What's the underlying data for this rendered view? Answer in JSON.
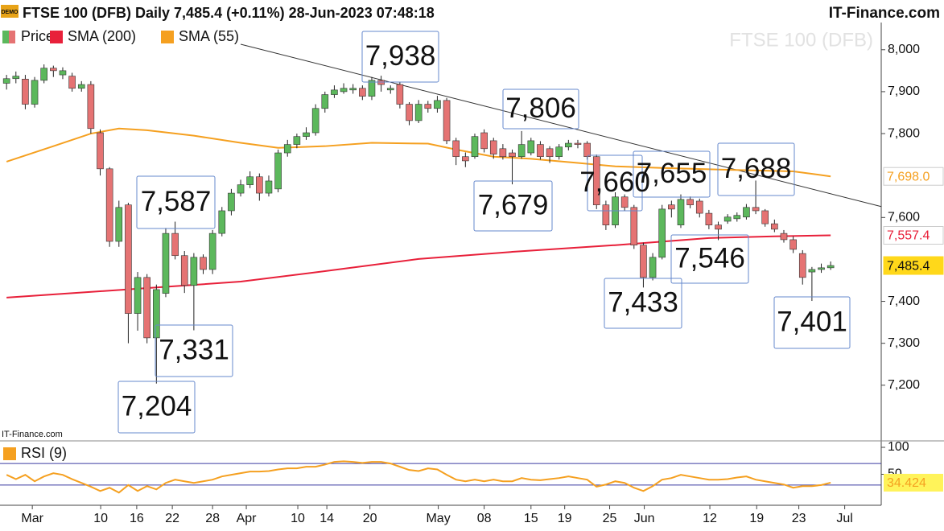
{
  "header": {
    "title": "FTSE 100 (DFB) Daily 7,485.4 (+0.11%) 28-Jun-2023 07:48:18",
    "brand": "IT-Finance.com",
    "watermark": "FTSE 100 (DFB)",
    "footer_brand": "IT-Finance.com",
    "badge": "DEMO"
  },
  "chart_data": [
    {
      "type": "candlestick",
      "name": "Price",
      "up_color": "#5cb85c",
      "down_color": "#e57373",
      "open": [
        7920,
        7931,
        7930,
        7870,
        7927,
        7956,
        7940,
        7937,
        7908,
        7917,
        7802,
        7716,
        7543,
        7630,
        7371,
        7457,
        7313,
        7419,
        7562,
        7509,
        7438,
        7505,
        7476,
        7562,
        7616,
        7658,
        7678,
        7697,
        7658,
        7668,
        7754,
        7774,
        7793,
        7802,
        7860,
        7893,
        7900,
        7904,
        7908,
        7889,
        7927,
        7904,
        7917,
        7870,
        7831,
        7870,
        7860,
        7879,
        7783,
        7745,
        7745,
        7802,
        7783,
        7764,
        7754,
        7745,
        7754,
        7774,
        7764,
        7745,
        7768,
        7777,
        7777,
        7745,
        7630,
        7582,
        7649,
        7624,
        7534,
        7457,
        7505,
        7630,
        7582,
        7643,
        7639,
        7610,
        7582,
        7591,
        7597,
        7601,
        7624,
        7616,
        7585,
        7562,
        7547,
        7514,
        7470,
        7476,
        7480
      ],
      "high": [
        7940,
        7948,
        7940,
        7935,
        7965,
        7962,
        7958,
        7945,
        7925,
        7925,
        7810,
        7720,
        7640,
        7635,
        7470,
        7465,
        7440,
        7575,
        7590,
        7520,
        7515,
        7512,
        7570,
        7625,
        7668,
        7690,
        7710,
        7705,
        7700,
        7762,
        7785,
        7800,
        7815,
        7870,
        7900,
        7915,
        7920,
        7918,
        7915,
        7935,
        7938,
        7915,
        7922,
        7875,
        7880,
        7878,
        7890,
        7885,
        7790,
        7755,
        7800,
        7810,
        7790,
        7775,
        7762,
        7806,
        7790,
        7782,
        7770,
        7775,
        7785,
        7785,
        7782,
        7750,
        7640,
        7660,
        7655,
        7630,
        7540,
        7515,
        7630,
        7640,
        7655,
        7650,
        7645,
        7618,
        7590,
        7608,
        7612,
        7632,
        7688,
        7620,
        7595,
        7570,
        7555,
        7522,
        7482,
        7490,
        7495
      ],
      "low": [
        7905,
        7920,
        7858,
        7862,
        7920,
        7935,
        7930,
        7900,
        7900,
        7800,
        7700,
        7530,
        7530,
        7300,
        7330,
        7300,
        7204,
        7410,
        7500,
        7420,
        7331,
        7465,
        7465,
        7555,
        7605,
        7650,
        7670,
        7640,
        7650,
        7660,
        7745,
        7765,
        7785,
        7795,
        7850,
        7885,
        7895,
        7895,
        7880,
        7880,
        7900,
        7895,
        7860,
        7820,
        7825,
        7850,
        7850,
        7775,
        7725,
        7720,
        7740,
        7755,
        7740,
        7738,
        7679,
        7740,
        7748,
        7738,
        7730,
        7738,
        7760,
        7765,
        7738,
        7620,
        7570,
        7575,
        7615,
        7525,
        7433,
        7450,
        7500,
        7600,
        7575,
        7622,
        7600,
        7572,
        7546,
        7585,
        7590,
        7595,
        7608,
        7578,
        7565,
        7540,
        7515,
        7440,
        7401,
        7468,
        7475
      ],
      "close": [
        7931,
        7937,
        7870,
        7927,
        7956,
        7950,
        7950,
        7908,
        7917,
        7812,
        7716,
        7543,
        7624,
        7371,
        7457,
        7313,
        7428,
        7562,
        7509,
        7438,
        7505,
        7476,
        7562,
        7616,
        7658,
        7678,
        7697,
        7658,
        7687,
        7754,
        7774,
        7793,
        7802,
        7860,
        7893,
        7904,
        7908,
        7908,
        7889,
        7927,
        7917,
        7908,
        7870,
        7831,
        7870,
        7860,
        7879,
        7783,
        7745,
        7735,
        7793,
        7764,
        7751,
        7745,
        7745,
        7774,
        7783,
        7745,
        7745,
        7768,
        7777,
        7774,
        7745,
        7630,
        7582,
        7649,
        7624,
        7534,
        7457,
        7505,
        7620,
        7620,
        7643,
        7630,
        7610,
        7582,
        7572,
        7601,
        7605,
        7624,
        7616,
        7585,
        7572,
        7547,
        7524,
        7457,
        7476,
        7480,
        7485.4
      ],
      "last_label": "7,485.4",
      "overlays": [
        {
          "name": "SMA (200)",
          "color": "#e8203a",
          "x": [
            0,
            10,
            25,
            34,
            44,
            54,
            65,
            75,
            82,
            88
          ],
          "values": [
            7409,
            7424,
            7447,
            7472,
            7501,
            7518,
            7534,
            7551,
            7555,
            7557.4
          ],
          "last_label": "7,557.4"
        },
        {
          "name": "SMA (55)",
          "color": "#f5a020",
          "x": [
            0,
            5,
            9,
            12,
            15,
            20,
            25,
            29,
            34,
            39,
            45,
            48,
            52,
            56,
            61,
            65,
            70,
            75,
            80,
            84,
            88
          ],
          "values": [
            7733,
            7770,
            7800,
            7812,
            7808,
            7795,
            7778,
            7766,
            7770,
            7778,
            7776,
            7762,
            7745,
            7740,
            7730,
            7722,
            7718,
            7715,
            7712,
            7710,
            7698.0
          ],
          "last_label": "7,698.0"
        }
      ],
      "trendline": {
        "color": "#333333",
        "x": [
          25,
          93.4
        ],
        "values": [
          8013,
          7626
        ]
      },
      "annotations": [
        "7,938",
        "7,806",
        "7,679",
        "7,587",
        "7,331",
        "7,204",
        "7,660",
        "7,655",
        "7,688",
        "7,546",
        "7,433",
        "7,401"
      ],
      "ylim": [
        7073,
        8061
      ],
      "yticks": [
        {
          "value": 8000,
          "label": "8,000"
        },
        {
          "value": 7900,
          "label": "7,900"
        },
        {
          "value": 7800,
          "label": "7,800"
        },
        {
          "value": 7600,
          "label": "7,600"
        },
        {
          "value": 7400,
          "label": "7,400"
        },
        {
          "value": 7300,
          "label": "7,300"
        },
        {
          "value": 7200,
          "label": "7,200"
        }
      ],
      "xlim": [
        -0.7,
        93.4
      ],
      "xticks": [
        {
          "value": 2.75,
          "label": "Mar"
        },
        {
          "value": 10.05,
          "label": "10"
        },
        {
          "value": 13.9,
          "label": "16"
        },
        {
          "value": 17.7,
          "label": "22"
        },
        {
          "value": 22,
          "label": "28"
        },
        {
          "value": 25.6,
          "label": "Apr"
        },
        {
          "value": 31.1,
          "label": "10"
        },
        {
          "value": 34.2,
          "label": "14"
        },
        {
          "value": 38.8,
          "label": "20"
        },
        {
          "value": 46.1,
          "label": "May"
        },
        {
          "value": 51,
          "label": "08"
        },
        {
          "value": 56,
          "label": "15"
        },
        {
          "value": 59.6,
          "label": "19"
        },
        {
          "value": 64.4,
          "label": "25"
        },
        {
          "value": 68.1,
          "label": "Jun"
        },
        {
          "value": 75.1,
          "label": "12"
        },
        {
          "value": 80.1,
          "label": "19"
        },
        {
          "value": 84.6,
          "label": "23"
        },
        {
          "value": 89.5,
          "label": "Jul"
        }
      ]
    },
    {
      "type": "line",
      "series": [
        {
          "name": "RSI (9)",
          "color": "#f5a020",
          "values": [
            49,
            41,
            49,
            37,
            46,
            52,
            49,
            41,
            34,
            27,
            19,
            25,
            16,
            30,
            19,
            28,
            22,
            34,
            40,
            37,
            34,
            37,
            40,
            46,
            49,
            52,
            55,
            55,
            56,
            59,
            61,
            61,
            64,
            64,
            68,
            73,
            74,
            73,
            71,
            73,
            73,
            70,
            64,
            58,
            56,
            61,
            59,
            49,
            40,
            37,
            40,
            37,
            40,
            37,
            37,
            43,
            40,
            39,
            41,
            43,
            46,
            43,
            40,
            27,
            31,
            37,
            34,
            25,
            19,
            28,
            40,
            43,
            49,
            46,
            43,
            40,
            40,
            41,
            44,
            46,
            40,
            37,
            34,
            31,
            25,
            28,
            28,
            30,
            34.424
          ],
          "last_label": "34.424"
        }
      ],
      "levels": [
        70,
        30
      ],
      "level_color": "#3a3aa0",
      "ylim": [
        0,
        100
      ],
      "yticks": [
        100,
        50
      ]
    }
  ]
}
